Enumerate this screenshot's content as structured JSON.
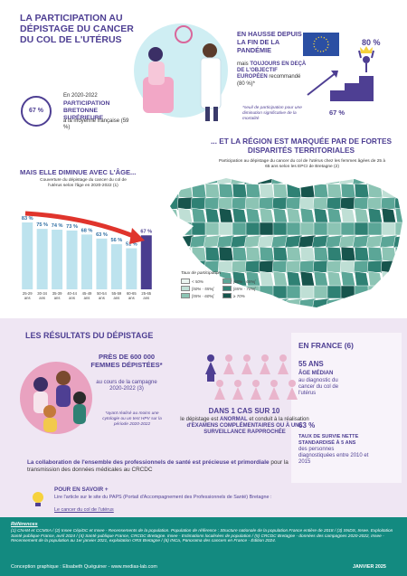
{
  "header": {
    "title": "LA PARTICIPATION AU DÉPISTAGE DU CANCER DU COL DE L'UTÉRUS",
    "badge": "67 %",
    "period": "En 2020-2022",
    "highlight": "PARTICIPATION BRETONNE SUPÉRIEURE",
    "comparison": "à la moyenne française (59 %)"
  },
  "trend": {
    "title": "EN HAUSSE DEPUIS LA FIN DE LA PANDÉMIE",
    "lead": "mais",
    "emphasis": "TOUJOURS EN DEÇÀ DE L'OBJECTIF EUROPÉEN",
    "tail": "recommandé (80 %)*",
    "note": "*seuil de participation pour une diminution significative de la mortalité",
    "target": "80 %",
    "current": "67 %"
  },
  "age_chart": {
    "type": "bar",
    "title": "MAIS ELLE DIMINUE AVEC L'ÂGE...",
    "subtitle": "Couverture du dépistage du cancer du col de l'utérus selon l'âge en 2020-2022 (1)",
    "categories": [
      "25-29 ans",
      "30-34 ans",
      "35-39 ans",
      "40-44 ans",
      "45-49 ans",
      "50-54 ans",
      "55-59 ans",
      "60-65 ans",
      "25-65 ans"
    ],
    "values": [
      83,
      75,
      74,
      73,
      68,
      63,
      56,
      51,
      67
    ],
    "value_labels": [
      "83 %",
      "75 %",
      "74 %",
      "73 %",
      "68 %",
      "63 %",
      "56 %",
      "51 %",
      "67 %"
    ],
    "color": "#bde3ee",
    "total_color": "#4a3d8f"
  },
  "map": {
    "title": "... ET LA RÉGION EST MARQUÉE PAR DE FORTES DISPARITÉS TERRITORIALES",
    "subtitle": "Participation au dépistage du cancer du col de l'utérus chez les femmes âgées de 25 à 65 ans selon les EPCI de Bretagne (2)",
    "legend_title": "Taux de participation",
    "legend": [
      {
        "label": "< 50%",
        "color": "#eaf4f0"
      },
      {
        "label": "[50% - 55%[",
        "color": "#bfdfd5"
      },
      {
        "label": "[55% - 60%[",
        "color": "#8cc4b4"
      },
      {
        "label": "[60% - 65%[",
        "color": "#5ba697"
      },
      {
        "label": "[65% - 70%[",
        "color": "#2f8174"
      },
      {
        "label": "≥ 70%",
        "color": "#17554d"
      }
    ]
  },
  "results": {
    "title": "LES RÉSULTATS DU DÉPISTAGE",
    "count": "PRÈS DE 600 000 FEMMES DÉPISTÉES*",
    "campaign": "au cours de la campagne 2020-2022 (3)",
    "note": "*ayant réalisé au moins une cytologie ou un test HPV sur la période 2020-2022",
    "ratio": "DANS 1 CAS SUR 10",
    "ratio_lead": "le dépistage est",
    "ratio_emphasis": "ANORMAL",
    "ratio_mid": "et conduit à la réalisation",
    "ratio_tail": "d'EXAMENS COMPLÉMENTAIRES OU À UNE SURVEILLANCE RAPPROCHÉE",
    "collab_emphasis": "La collaboration de l'ensemble des professionnels de santé est précieuse et primordiale",
    "collab_tail": "pour la transmission des données médicales au CRCDC"
  },
  "france": {
    "title": "EN FRANCE (6)",
    "age": "55 ANS",
    "age_label": "ÂGE MÉDIAN",
    "age_desc": "au diagnostic du cancer du col de l'utérus",
    "survival": "63 %",
    "survival_label": "TAUX DE SURVIE NETTE STANDARDISÉ À 5 ANS",
    "survival_desc": "des personnes diagnostiquées entre 2010 et 2015"
  },
  "more": {
    "title": "POUR EN SAVOIR +",
    "text": "Lire l'article sur le site du PAPS (Portail d'Accompagnement des Professionnels de Santé) Bretagne :",
    "link": "Le cancer du col de l'utérus"
  },
  "footer": {
    "refs_title": "Références",
    "refs": "(1) CNAM et CCMSA / (2) Insee CépiDC et Insee - Recensements de la population. Population de référence : Structure nationale de la population France entière de 2018 / (3) SNDS, Insee. Exploitation Santé publique France, avril 2024 / (4) Santé publique France, CRCDC Bretagne. Insee - Estimations localisées de population / (5) CRCDC Bretagne - données des campagnes 2020-2022, Insee - Recensement de la population au 1er janvier 2021, exploitation ORS Bretagne / (6) INCa, Panorama des cancers en France - Édition 2024.",
    "credits": "Conception graphique : Elisabeth Quéguiner - www.medias-lab.com",
    "date": "JANVIER 2025"
  }
}
